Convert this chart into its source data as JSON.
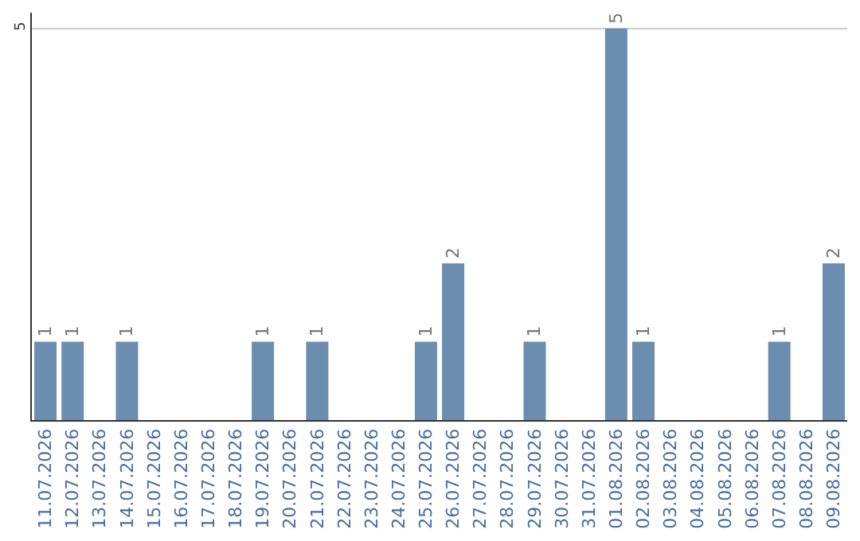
{
  "chart_data": {
    "type": "bar",
    "categories": [
      "11.07.2026",
      "12.07.2026",
      "13.07.2026",
      "14.07.2026",
      "15.07.2026",
      "16.07.2026",
      "17.07.2026",
      "18.07.2026",
      "19.07.2026",
      "20.07.2026",
      "21.07.2026",
      "22.07.2026",
      "23.07.2026",
      "24.07.2026",
      "25.07.2026",
      "26.07.2026",
      "27.07.2026",
      "28.07.2026",
      "29.07.2026",
      "30.07.2026",
      "31.07.2026",
      "01.08.2026",
      "02.08.2026",
      "03.08.2026",
      "04.08.2026",
      "05.08.2026",
      "06.08.2026",
      "07.08.2026",
      "08.08.2026",
      "09.08.2026"
    ],
    "values": [
      1,
      1,
      0,
      1,
      0,
      0,
      0,
      0,
      1,
      0,
      1,
      0,
      0,
      0,
      1,
      2,
      0,
      0,
      1,
      0,
      0,
      5,
      1,
      0,
      0,
      0,
      0,
      1,
      0,
      2
    ],
    "value_labels": [
      "1",
      "1",
      null,
      "1",
      null,
      null,
      null,
      null,
      "1",
      null,
      "1",
      null,
      null,
      null,
      "1",
      "2",
      null,
      null,
      "1",
      null,
      null,
      "5",
      "1",
      null,
      null,
      null,
      null,
      "1",
      null,
      "2"
    ],
    "color": "#6b8db0",
    "ylim": [
      0,
      5.2
    ],
    "yticks": [
      5
    ],
    "grid": "y"
  }
}
